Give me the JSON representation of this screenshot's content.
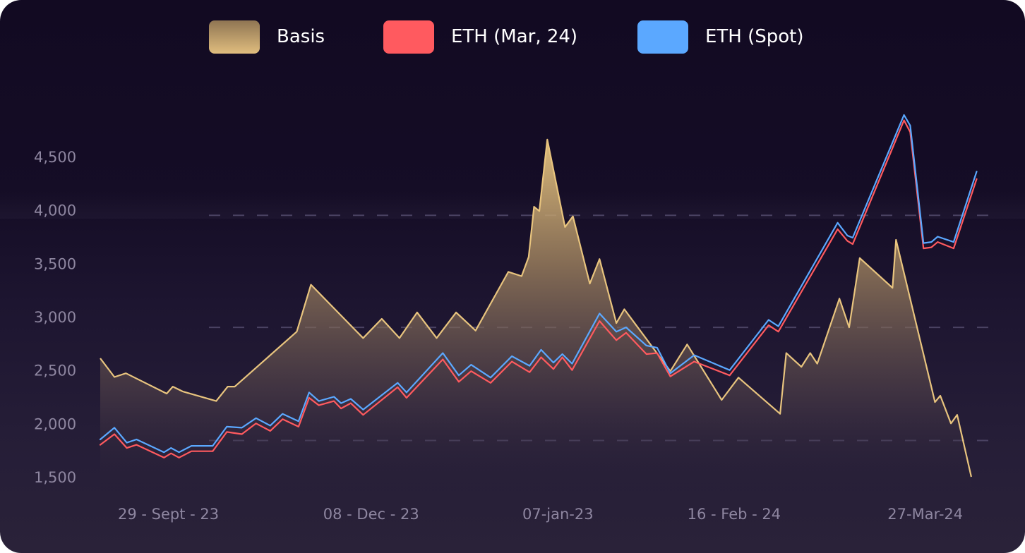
{
  "chart_data": {
    "type": "line",
    "title": "",
    "xlabel": "",
    "ylabel": "",
    "ylim": [
      1500,
      4950
    ],
    "y_ticks": [
      "1,500",
      "2,000",
      "2,500",
      "3,000",
      "3,500",
      "4,000",
      "4,500"
    ],
    "y_tick_values": [
      1500,
      2000,
      2500,
      3000,
      3500,
      4000,
      4500
    ],
    "x_tick_labels": [
      "29 - Sept - 23",
      "08 - Dec - 23",
      "07-jan-23",
      "16 - Feb - 24",
      "27-Mar-24"
    ],
    "x_range": [
      0,
      100
    ],
    "x_tick_positions": [
      7.7,
      30.6,
      51.7,
      71.6,
      93.2
    ],
    "grid": "dashed horizontal, partial",
    "legend_placement": "top-center",
    "series": [
      {
        "name": "Basis",
        "kind": "area",
        "color": "#e8c47e",
        "points": [
          [
            0,
            2610
          ],
          [
            1.6,
            2435
          ],
          [
            2.9,
            2470
          ],
          [
            7.5,
            2280
          ],
          [
            8.2,
            2345
          ],
          [
            9.3,
            2300
          ],
          [
            13.1,
            2210
          ],
          [
            14.4,
            2345
          ],
          [
            15.2,
            2345
          ],
          [
            22.2,
            2860
          ],
          [
            23.8,
            3300
          ],
          [
            29.7,
            2800
          ],
          [
            31.8,
            2980
          ],
          [
            33.8,
            2800
          ],
          [
            35.8,
            3040
          ],
          [
            38.0,
            2800
          ],
          [
            40.2,
            3040
          ],
          [
            42.4,
            2870
          ],
          [
            46.1,
            3420
          ],
          [
            47.6,
            3380
          ],
          [
            48.4,
            3560
          ],
          [
            49.0,
            4030
          ],
          [
            49.6,
            3990
          ],
          [
            50.5,
            4660
          ],
          [
            52.5,
            3840
          ],
          [
            53.4,
            3940
          ],
          [
            55.3,
            3310
          ],
          [
            56.4,
            3540
          ],
          [
            58.3,
            2940
          ],
          [
            59.2,
            3070
          ],
          [
            64.4,
            2490
          ],
          [
            66.3,
            2740
          ],
          [
            70.2,
            2220
          ],
          [
            72.1,
            2430
          ],
          [
            76.8,
            2090
          ],
          [
            77.5,
            2660
          ],
          [
            79.2,
            2530
          ],
          [
            80.2,
            2660
          ],
          [
            81.0,
            2560
          ],
          [
            83.5,
            3170
          ],
          [
            84.6,
            2900
          ],
          [
            85.8,
            3550
          ],
          [
            89.5,
            3270
          ],
          [
            89.9,
            3720
          ],
          [
            94.3,
            2200
          ],
          [
            94.9,
            2260
          ],
          [
            96.1,
            2000
          ],
          [
            96.8,
            2080
          ],
          [
            98.4,
            1500
          ]
        ]
      },
      {
        "name": "ETH (Mar, 24)",
        "kind": "line",
        "color": "#ff5a5f",
        "points": [
          [
            0,
            1800
          ],
          [
            1.6,
            1900
          ],
          [
            3.0,
            1770
          ],
          [
            4.1,
            1800
          ],
          [
            7.2,
            1680
          ],
          [
            8.0,
            1720
          ],
          [
            8.9,
            1680
          ],
          [
            10.3,
            1740
          ],
          [
            12.7,
            1740
          ],
          [
            14.3,
            1920
          ],
          [
            16.0,
            1900
          ],
          [
            17.6,
            2000
          ],
          [
            19.2,
            1930
          ],
          [
            20.6,
            2040
          ],
          [
            22.4,
            1970
          ],
          [
            23.6,
            2240
          ],
          [
            24.7,
            2170
          ],
          [
            26.4,
            2210
          ],
          [
            27.2,
            2140
          ],
          [
            28.3,
            2190
          ],
          [
            29.7,
            2080
          ],
          [
            33.6,
            2340
          ],
          [
            34.6,
            2240
          ],
          [
            38.7,
            2600
          ],
          [
            40.5,
            2390
          ],
          [
            41.9,
            2490
          ],
          [
            44.1,
            2380
          ],
          [
            46.5,
            2580
          ],
          [
            48.5,
            2480
          ],
          [
            49.8,
            2620
          ],
          [
            51.2,
            2510
          ],
          [
            52.2,
            2620
          ],
          [
            53.3,
            2500
          ],
          [
            56.4,
            2960
          ],
          [
            58.3,
            2780
          ],
          [
            59.4,
            2850
          ],
          [
            61.7,
            2650
          ],
          [
            62.9,
            2660
          ],
          [
            64.4,
            2440
          ],
          [
            67.1,
            2580
          ],
          [
            71.1,
            2450
          ],
          [
            75.5,
            2920
          ],
          [
            76.6,
            2860
          ],
          [
            83.3,
            3820
          ],
          [
            84.4,
            3710
          ],
          [
            85.0,
            3680
          ],
          [
            90.8,
            4840
          ],
          [
            91.5,
            4730
          ],
          [
            93.0,
            3640
          ],
          [
            93.9,
            3650
          ],
          [
            94.6,
            3700
          ],
          [
            96.4,
            3640
          ],
          [
            99.0,
            4290
          ]
        ]
      },
      {
        "name": "ETH (Spot)",
        "kind": "line",
        "color": "#5ba8ff",
        "points": [
          [
            0,
            1850
          ],
          [
            1.6,
            1960
          ],
          [
            3.0,
            1820
          ],
          [
            4.1,
            1850
          ],
          [
            7.2,
            1730
          ],
          [
            8.0,
            1770
          ],
          [
            8.9,
            1730
          ],
          [
            10.3,
            1790
          ],
          [
            12.7,
            1790
          ],
          [
            14.3,
            1970
          ],
          [
            16.0,
            1960
          ],
          [
            17.6,
            2050
          ],
          [
            19.2,
            1980
          ],
          [
            20.6,
            2090
          ],
          [
            22.4,
            2020
          ],
          [
            23.6,
            2290
          ],
          [
            24.7,
            2210
          ],
          [
            26.4,
            2250
          ],
          [
            27.2,
            2190
          ],
          [
            28.3,
            2230
          ],
          [
            29.7,
            2130
          ],
          [
            33.6,
            2380
          ],
          [
            34.6,
            2290
          ],
          [
            38.7,
            2660
          ],
          [
            40.5,
            2450
          ],
          [
            41.9,
            2550
          ],
          [
            44.1,
            2430
          ],
          [
            46.5,
            2630
          ],
          [
            48.5,
            2540
          ],
          [
            49.8,
            2690
          ],
          [
            51.2,
            2570
          ],
          [
            52.2,
            2650
          ],
          [
            53.3,
            2560
          ],
          [
            56.4,
            3030
          ],
          [
            58.3,
            2860
          ],
          [
            59.4,
            2900
          ],
          [
            61.7,
            2730
          ],
          [
            62.9,
            2710
          ],
          [
            64.4,
            2470
          ],
          [
            67.1,
            2640
          ],
          [
            71.1,
            2500
          ],
          [
            75.5,
            2970
          ],
          [
            76.6,
            2910
          ],
          [
            83.3,
            3880
          ],
          [
            84.4,
            3760
          ],
          [
            85.0,
            3740
          ],
          [
            90.8,
            4890
          ],
          [
            91.5,
            4790
          ],
          [
            93.0,
            3690
          ],
          [
            93.9,
            3700
          ],
          [
            94.6,
            3750
          ],
          [
            96.4,
            3700
          ],
          [
            99.0,
            4360
          ]
        ]
      }
    ]
  },
  "legend": {
    "items": [
      {
        "label": "Basis",
        "color_top": "#8f7553",
        "color_bottom": "#e0bd7e"
      },
      {
        "label": "ETH (Mar, 24)",
        "color_top": "#ff5a5f",
        "color_bottom": "#ff5a5f"
      },
      {
        "label": "ETH (Spot)",
        "color_top": "#5ba8ff",
        "color_bottom": "#5ba8ff"
      }
    ]
  }
}
